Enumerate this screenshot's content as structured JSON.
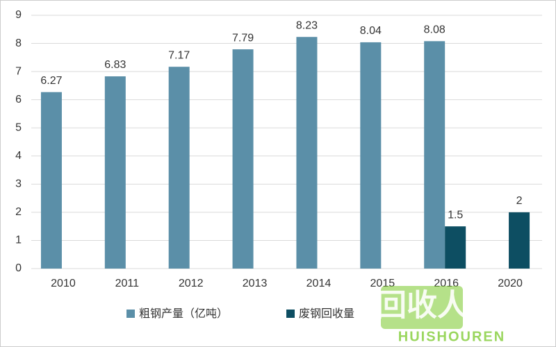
{
  "chart_data": {
    "type": "bar",
    "categories": [
      "2010",
      "2011",
      "2012",
      "2013",
      "2014",
      "2015",
      "2016",
      "2020"
    ],
    "series": [
      {
        "name": "粗钢产量（亿吨）",
        "color": "#5b8fa8",
        "values": [
          6.27,
          6.83,
          7.17,
          7.79,
          8.23,
          8.04,
          8.08,
          null
        ]
      },
      {
        "name": "废钢回收量",
        "color": "#0d4e62",
        "values": [
          null,
          null,
          null,
          null,
          null,
          null,
          1.5,
          2
        ]
      }
    ],
    "ylim": [
      0,
      9
    ],
    "yticks": [
      0,
      1,
      2,
      3,
      4,
      5,
      6,
      7,
      8,
      9
    ],
    "grid": true,
    "legend": "bottom",
    "watermark": {
      "logo": "回收人",
      "text": "HUISHOUREN"
    }
  }
}
